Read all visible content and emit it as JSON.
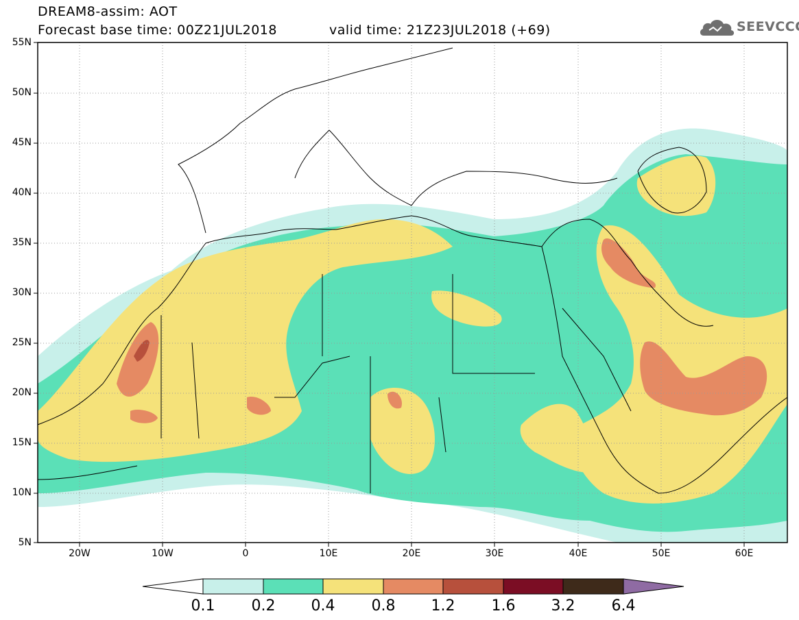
{
  "header": {
    "title": "DREAM8-assim: AOT",
    "base_time": "Forecast base time: 00Z21JUL2018",
    "valid_time": "valid time: 21Z23JUL2018 (+69)",
    "logo_text": "SEEVCCC"
  },
  "map": {
    "lon_range": [
      -25,
      65
    ],
    "lat_range": [
      5,
      55
    ],
    "lat_labels": [
      "55N",
      "50N",
      "45N",
      "40N",
      "35N",
      "30N",
      "25N",
      "20N",
      "15N",
      "10N",
      "5N"
    ],
    "lon_labels": [
      "20W",
      "10W",
      "0",
      "10E",
      "20E",
      "30E",
      "40E",
      "50E",
      "60E"
    ],
    "gridlines": "dotted",
    "variable": "AOT"
  },
  "colorbar": {
    "labels": [
      "0.1",
      "0.2",
      "0.4",
      "0.8",
      "1.2",
      "1.6",
      "3.2",
      "6.4"
    ],
    "colors": [
      "#ffffff",
      "#c8f0ea",
      "#5be0b7",
      "#f5e27a",
      "#e58a63",
      "#b7503c",
      "#7b0d24",
      "#3e2a1a",
      "#8f6ba3"
    ]
  }
}
